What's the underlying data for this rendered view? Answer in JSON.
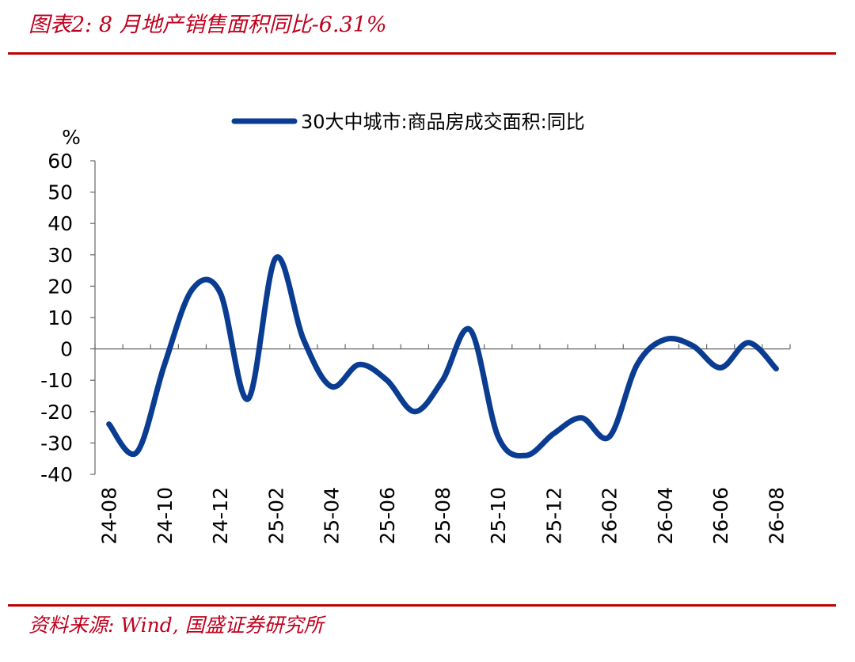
{
  "header": {
    "title": "图表2:  8 月地产销售面积同比-6.31%"
  },
  "footer": {
    "source": "资料来源:  Wind,  国盛证券研究所"
  },
  "colors": {
    "title_red": "#c0001e",
    "rule_red": "#c00000",
    "series_blue": "#0a3d91",
    "axis_gray": "#666666"
  },
  "chart_data": {
    "type": "line",
    "y_unit_label": "%",
    "ylim": [
      -40,
      60
    ],
    "y_ticks": [
      60,
      50,
      40,
      30,
      20,
      10,
      0,
      -10,
      -20,
      -30,
      -40
    ],
    "x_tick_labels": [
      "24-08",
      "24-10",
      "24-12",
      "25-02",
      "25-04",
      "25-06",
      "25-08",
      "25-10",
      "25-12",
      "26-02",
      "26-04",
      "26-06",
      "26-08"
    ],
    "grid": false,
    "legend_position": "top-center",
    "x": [
      "24-08",
      "24-09",
      "24-10",
      "24-11",
      "24-12",
      "25-01",
      "25-02",
      "25-03",
      "25-04",
      "25-05",
      "25-06",
      "25-07",
      "25-08",
      "25-09",
      "25-10",
      "25-11",
      "25-12",
      "26-01",
      "26-02",
      "26-03",
      "26-04",
      "26-05",
      "26-06",
      "26-07",
      "26-08"
    ],
    "series": [
      {
        "name": "30大中城市:商品房成交面积:同比",
        "values": [
          -24,
          -33,
          -5,
          19,
          18,
          -16,
          29,
          3,
          -12,
          -5,
          -10,
          -20,
          -10,
          6,
          -28,
          -34,
          -27,
          -22,
          -28,
          -5,
          3,
          1,
          -6,
          2,
          -6.31
        ]
      }
    ]
  }
}
